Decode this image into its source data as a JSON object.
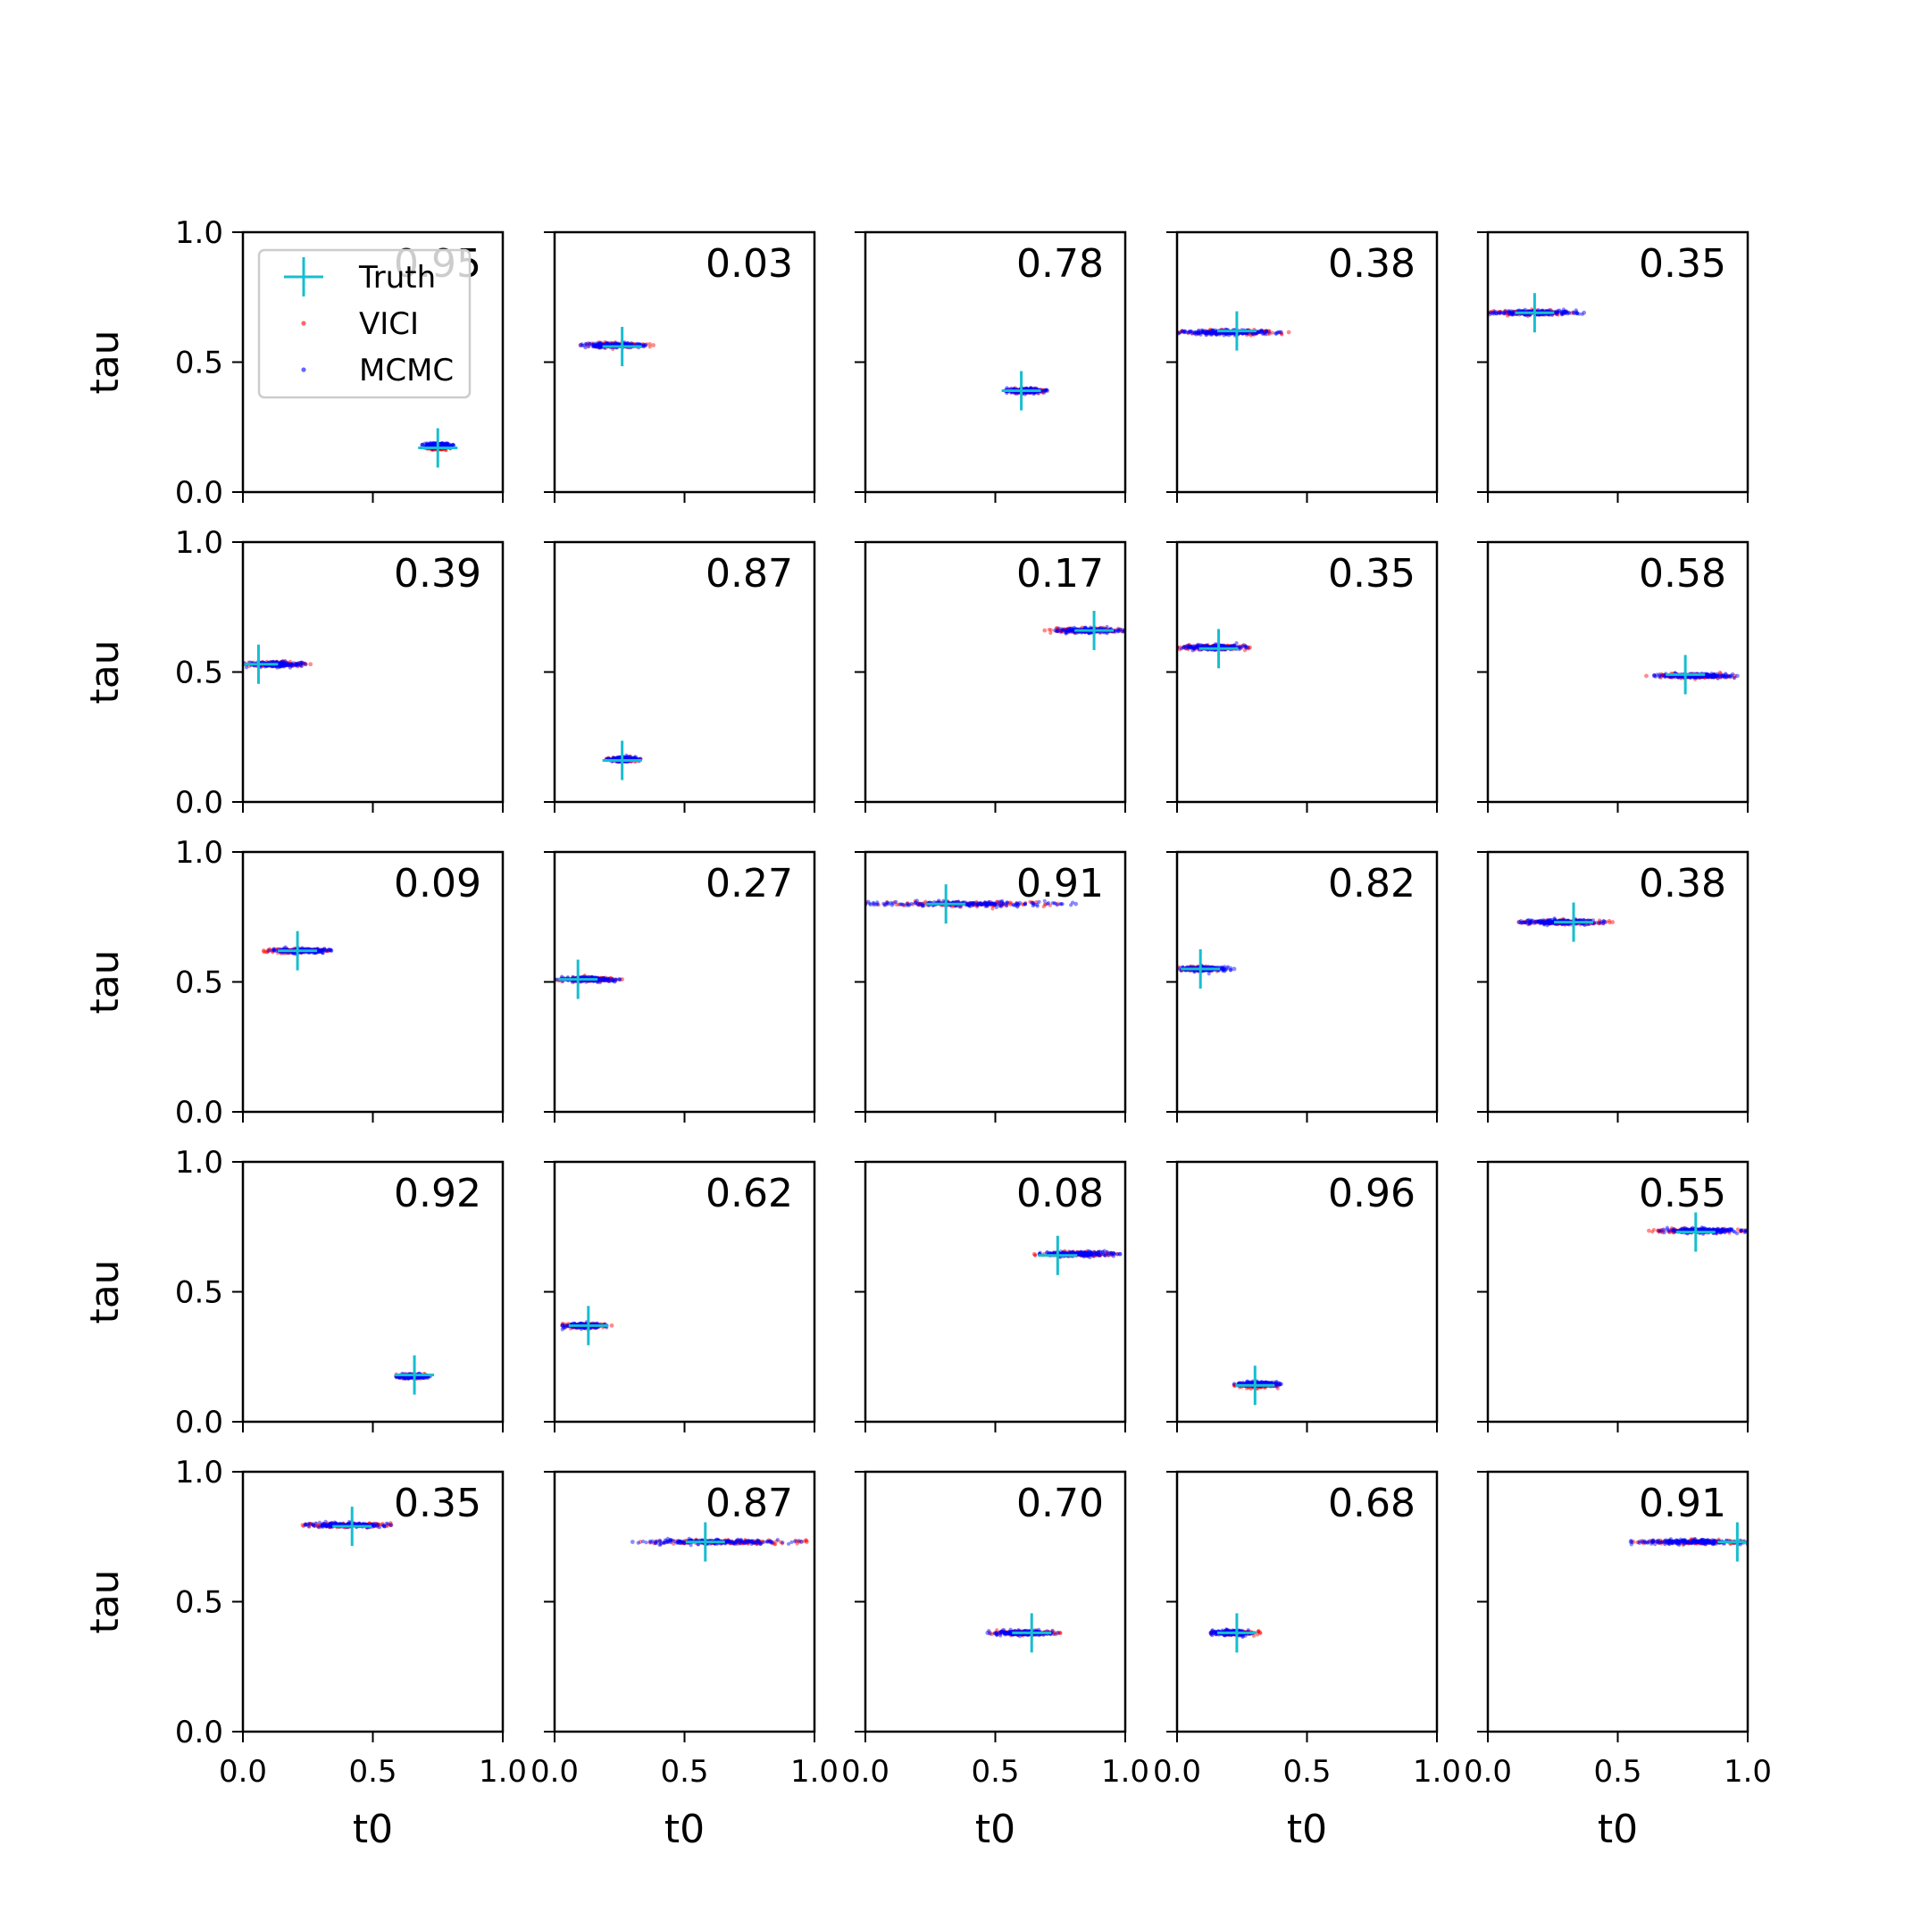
{
  "chart_data": {
    "type": "scatter",
    "rows": 5,
    "cols": 5,
    "xlabel": "t0",
    "ylabel": "tau",
    "xlim": [
      0.0,
      1.0
    ],
    "ylim": [
      0.0,
      1.0
    ],
    "xticks": [
      "0.0",
      "0.5",
      "1.0"
    ],
    "yticks": [
      "0.0",
      "0.5",
      "1.0"
    ],
    "grid": false,
    "colors": {
      "truth": "#17becf",
      "vici": "#ff0000",
      "mcmc": "#0000ff"
    },
    "legend": {
      "placement": "upper-left",
      "panel": 0,
      "entries": [
        {
          "label": "Truth",
          "marker": "plus",
          "color": "#17becf"
        },
        {
          "label": "VICI",
          "marker": "dot",
          "color": "#ff0000"
        },
        {
          "label": "MCMC",
          "marker": "dot",
          "color": "#0000ff"
        }
      ]
    },
    "panels": [
      {
        "overlap": "0.95",
        "truth": [
          0.75,
          0.17
        ],
        "vici": [
          0.7,
          0.8,
          0.17
        ],
        "mcmc": [
          0.69,
          0.81,
          0.18
        ]
      },
      {
        "overlap": "0.03",
        "truth": [
          0.26,
          0.56
        ],
        "vici": [
          0.1,
          0.38,
          0.565
        ],
        "mcmc": [
          0.1,
          0.35,
          0.565
        ]
      },
      {
        "overlap": "0.78",
        "truth": [
          0.6,
          0.39
        ],
        "vici": [
          0.54,
          0.69,
          0.39
        ],
        "mcmc": [
          0.54,
          0.7,
          0.39
        ]
      },
      {
        "overlap": "0.38",
        "truth": [
          0.23,
          0.62
        ],
        "vici": [
          0.0,
          0.43,
          0.615
        ],
        "mcmc": [
          0.0,
          0.4,
          0.615
        ]
      },
      {
        "overlap": "0.35",
        "truth": [
          0.18,
          0.69
        ],
        "vici": [
          0.0,
          0.33,
          0.69
        ],
        "mcmc": [
          0.0,
          0.37,
          0.69
        ]
      },
      {
        "overlap": "0.39",
        "truth": [
          0.06,
          0.53
        ],
        "vici": [
          0.0,
          0.26,
          0.53
        ],
        "mcmc": [
          0.0,
          0.24,
          0.53
        ]
      },
      {
        "overlap": "0.87",
        "truth": [
          0.26,
          0.16
        ],
        "vici": [
          0.2,
          0.33,
          0.165
        ],
        "mcmc": [
          0.2,
          0.33,
          0.165
        ]
      },
      {
        "overlap": "0.17",
        "truth": [
          0.88,
          0.66
        ],
        "vici": [
          0.69,
          1.0,
          0.66
        ],
        "mcmc": [
          0.73,
          1.0,
          0.66
        ]
      },
      {
        "overlap": "0.35",
        "truth": [
          0.16,
          0.59
        ],
        "vici": [
          0.0,
          0.28,
          0.595
        ],
        "mcmc": [
          0.0,
          0.27,
          0.595
        ]
      },
      {
        "overlap": "0.58",
        "truth": [
          0.76,
          0.49
        ],
        "vici": [
          0.61,
          0.95,
          0.485
        ],
        "mcmc": [
          0.64,
          0.96,
          0.485
        ]
      },
      {
        "overlap": "0.09",
        "truth": [
          0.21,
          0.62
        ],
        "vici": [
          0.08,
          0.33,
          0.62
        ],
        "mcmc": [
          0.1,
          0.34,
          0.62
        ]
      },
      {
        "overlap": "0.27",
        "truth": [
          0.09,
          0.51
        ],
        "vici": [
          0.0,
          0.26,
          0.51
        ],
        "mcmc": [
          0.0,
          0.25,
          0.51
        ]
      },
      {
        "overlap": "0.91",
        "truth": [
          0.31,
          0.8
        ],
        "vici": [
          0.0,
          0.74,
          0.8
        ],
        "mcmc": [
          0.0,
          0.81,
          0.8
        ]
      },
      {
        "overlap": "0.82",
        "truth": [
          0.09,
          0.55
        ],
        "vici": [
          0.0,
          0.17,
          0.55
        ],
        "mcmc": [
          0.0,
          0.22,
          0.55
        ]
      },
      {
        "overlap": "0.38",
        "truth": [
          0.33,
          0.73
        ],
        "vici": [
          0.12,
          0.48,
          0.73
        ],
        "mcmc": [
          0.12,
          0.45,
          0.73
        ]
      },
      {
        "overlap": "0.92",
        "truth": [
          0.66,
          0.18
        ],
        "vici": [
          0.59,
          0.71,
          0.175
        ],
        "mcmc": [
          0.59,
          0.72,
          0.175
        ]
      },
      {
        "overlap": "0.62",
        "truth": [
          0.13,
          0.37
        ],
        "vici": [
          0.03,
          0.22,
          0.37
        ],
        "mcmc": [
          0.03,
          0.2,
          0.37
        ]
      },
      {
        "overlap": "0.08",
        "truth": [
          0.74,
          0.64
        ],
        "vici": [
          0.65,
          0.97,
          0.645
        ],
        "mcmc": [
          0.67,
          0.98,
          0.645
        ]
      },
      {
        "overlap": "0.96",
        "truth": [
          0.3,
          0.14
        ],
        "vici": [
          0.22,
          0.39,
          0.14
        ],
        "mcmc": [
          0.22,
          0.4,
          0.145
        ]
      },
      {
        "overlap": "0.55",
        "truth": [
          0.8,
          0.73
        ],
        "vici": [
          0.62,
          1.0,
          0.735
        ],
        "mcmc": [
          0.66,
          1.0,
          0.735
        ]
      },
      {
        "overlap": "0.35",
        "truth": [
          0.42,
          0.79
        ],
        "vici": [
          0.23,
          0.57,
          0.795
        ],
        "mcmc": [
          0.24,
          0.57,
          0.795
        ]
      },
      {
        "overlap": "0.87",
        "truth": [
          0.58,
          0.73
        ],
        "vici": [
          0.33,
          0.97,
          0.73
        ],
        "mcmc": [
          0.3,
          0.95,
          0.73
        ]
      },
      {
        "overlap": "0.70",
        "truth": [
          0.64,
          0.38
        ],
        "vici": [
          0.48,
          0.75,
          0.38
        ],
        "mcmc": [
          0.47,
          0.74,
          0.38
        ]
      },
      {
        "overlap": "0.68",
        "truth": [
          0.23,
          0.38
        ],
        "vici": [
          0.13,
          0.32,
          0.38
        ],
        "mcmc": [
          0.13,
          0.29,
          0.38
        ]
      },
      {
        "overlap": "0.91",
        "truth": [
          0.96,
          0.73
        ],
        "vici": [
          0.56,
          1.0,
          0.73
        ],
        "mcmc": [
          0.55,
          1.0,
          0.73
        ]
      }
    ]
  }
}
